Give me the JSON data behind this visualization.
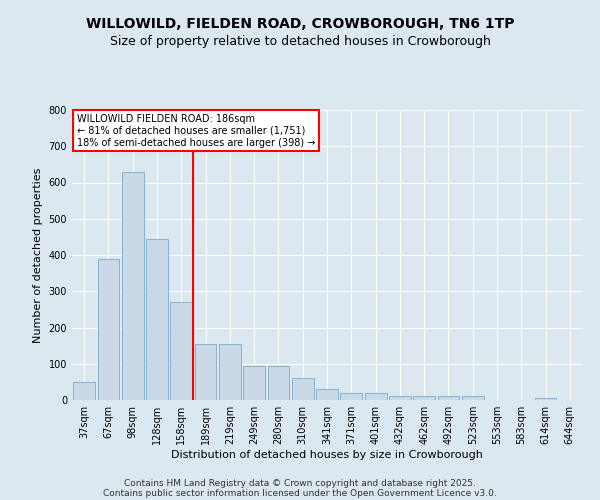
{
  "title": "WILLOWILD, FIELDEN ROAD, CROWBOROUGH, TN6 1TP",
  "subtitle": "Size of property relative to detached houses in Crowborough",
  "xlabel": "Distribution of detached houses by size in Crowborough",
  "ylabel": "Number of detached properties",
  "categories": [
    "37sqm",
    "67sqm",
    "98sqm",
    "128sqm",
    "158sqm",
    "189sqm",
    "219sqm",
    "249sqm",
    "280sqm",
    "310sqm",
    "341sqm",
    "371sqm",
    "401sqm",
    "432sqm",
    "462sqm",
    "492sqm",
    "523sqm",
    "553sqm",
    "583sqm",
    "614sqm",
    "644sqm"
  ],
  "values": [
    50,
    390,
    630,
    445,
    270,
    155,
    155,
    95,
    95,
    60,
    30,
    20,
    20,
    10,
    10,
    10,
    10,
    0,
    0,
    5,
    0
  ],
  "bar_color": "#c9d9e8",
  "bar_edge_color": "#7aaac8",
  "vline_color": "red",
  "vline_index": 4.5,
  "annotation_title": "WILLOWILD FIELDEN ROAD: 186sqm",
  "annotation_line1": "← 81% of detached houses are smaller (1,751)",
  "annotation_line2": "18% of semi-detached houses are larger (398) →",
  "ylim": [
    0,
    800
  ],
  "yticks": [
    0,
    100,
    200,
    300,
    400,
    500,
    600,
    700,
    800
  ],
  "footer_line1": "Contains HM Land Registry data © Crown copyright and database right 2025.",
  "footer_line2": "Contains public sector information licensed under the Open Government Licence v3.0.",
  "bg_color": "#dce8f0",
  "title_fontsize": 10,
  "subtitle_fontsize": 9,
  "axis_label_fontsize": 8,
  "tick_fontsize": 7,
  "footer_fontsize": 6.5,
  "annotation_fontsize": 7
}
